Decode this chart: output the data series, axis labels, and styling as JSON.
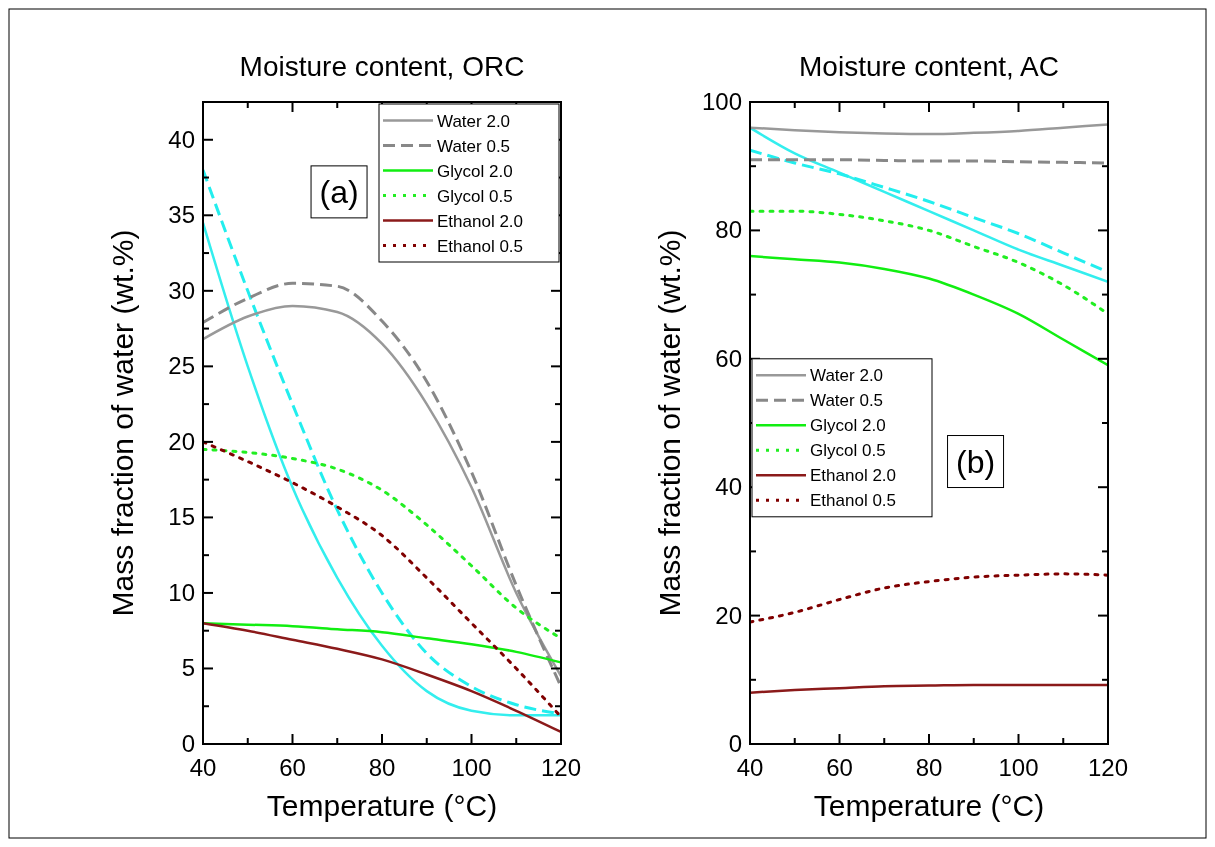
{
  "chart_data": [
    {
      "type": "line",
      "title": "Moisture content, ORC",
      "xlabel": "Temperature (°C)",
      "ylabel": "Mass fraction of water (wt.%)",
      "x": [
        40,
        50,
        60,
        70,
        80,
        90,
        100,
        110,
        120
      ],
      "xlim": [
        40,
        120
      ],
      "xticks": [
        40,
        60,
        80,
        100,
        120
      ],
      "ylim": [
        0,
        42.5
      ],
      "yticks": [
        0,
        5,
        10,
        15,
        20,
        25,
        30,
        35,
        40
      ],
      "legend": "top right",
      "annotations": [
        "(a)"
      ],
      "series": [
        {
          "color": "#33eeee",
          "line_style": "solid",
          "values": [
            34.5,
            25,
            17,
            11,
            6.5,
            3.5,
            2.2,
            1.9,
            1.9
          ]
        },
        {
          "color": "#22eeee",
          "line_style": "dashed",
          "values": [
            38,
            30,
            22.5,
            15.5,
            10,
            6,
            3.8,
            2.6,
            2.0
          ]
        },
        {
          "name": "Water 2.0",
          "color": "#999999",
          "line_style": "solid",
          "values": [
            26.8,
            28.3,
            29,
            28.6,
            26.5,
            22.5,
            17,
            10,
            4.5
          ]
        },
        {
          "name": "Water 0.5",
          "color": "#888888",
          "line_style": "dashed",
          "values": [
            27.9,
            29.5,
            30.5,
            30.3,
            28,
            24,
            18,
            10.5,
            3.8
          ]
        },
        {
          "name": "Glycol 2.0",
          "color": "#11ee11",
          "line_style": "solid",
          "values": [
            8,
            7.9,
            7.8,
            7.6,
            7.4,
            7.0,
            6.6,
            6.1,
            5.4
          ]
        },
        {
          "name": "Glycol 0.5",
          "color": "#22ee22",
          "line_style": "dotted",
          "values": [
            19.5,
            19.3,
            18.9,
            18.2,
            16.8,
            14.5,
            11.8,
            9,
            7
          ]
        },
        {
          "name": "Ethanol 2.0",
          "color": "#8b1a1a",
          "line_style": "solid",
          "values": [
            8,
            7.5,
            6.9,
            6.3,
            5.6,
            4.6,
            3.5,
            2.2,
            0.8
          ]
        },
        {
          "name": "Ethanol 0.5",
          "color": "#800000",
          "line_style": "dotted",
          "values": [
            20,
            18.7,
            17.3,
            15.7,
            13.8,
            11,
            8,
            5,
            1.8
          ]
        }
      ]
    },
    {
      "type": "line",
      "title": "Moisture content, AC",
      "xlabel": "Temperature (°C)",
      "ylabel": "Mass fraction of water (wt.%)",
      "x": [
        40,
        50,
        60,
        70,
        80,
        90,
        100,
        110,
        120
      ],
      "xlim": [
        40,
        120
      ],
      "xticks": [
        40,
        60,
        80,
        100,
        120
      ],
      "ylim": [
        0,
        100
      ],
      "yticks": [
        0,
        20,
        40,
        60,
        80,
        100
      ],
      "legend": "left",
      "annotations": [
        "(b)"
      ],
      "series": [
        {
          "color": "#33eeee",
          "line_style": "solid",
          "values": [
            96,
            92,
            89,
            86,
            83,
            80,
            77,
            74.5,
            72
          ]
        },
        {
          "color": "#22eeee",
          "line_style": "dashed",
          "values": [
            92.5,
            90.5,
            88.8,
            86.7,
            84.5,
            82,
            79.5,
            76.5,
            73.5
          ]
        },
        {
          "name": "Water 2.0",
          "color": "#999999",
          "line_style": "solid",
          "values": [
            96,
            95.6,
            95.3,
            95.1,
            95,
            95.2,
            95.5,
            96,
            96.5
          ]
        },
        {
          "name": "Water 0.5",
          "color": "#888888",
          "line_style": "dashed",
          "values": [
            91,
            91,
            91,
            90.9,
            90.8,
            90.8,
            90.7,
            90.6,
            90.5
          ]
        },
        {
          "name": "Glycol 2.0",
          "color": "#11ee11",
          "line_style": "solid",
          "values": [
            76,
            75.5,
            75,
            74,
            72.5,
            70,
            67,
            63,
            59
          ]
        },
        {
          "name": "Glycol 0.5",
          "color": "#22ee22",
          "line_style": "dotted",
          "values": [
            83,
            83,
            82.5,
            81.5,
            80,
            77.5,
            75,
            71.5,
            67
          ]
        },
        {
          "name": "Ethanol 2.0",
          "color": "#8b1a1a",
          "line_style": "solid",
          "values": [
            8,
            8.4,
            8.7,
            9,
            9.1,
            9.2,
            9.2,
            9.2,
            9.2
          ]
        },
        {
          "name": "Ethanol 0.5",
          "color": "#800000",
          "line_style": "dotted",
          "values": [
            19,
            20.5,
            22.5,
            24.3,
            25.3,
            26,
            26.3,
            26.5,
            26.3
          ]
        }
      ]
    }
  ]
}
